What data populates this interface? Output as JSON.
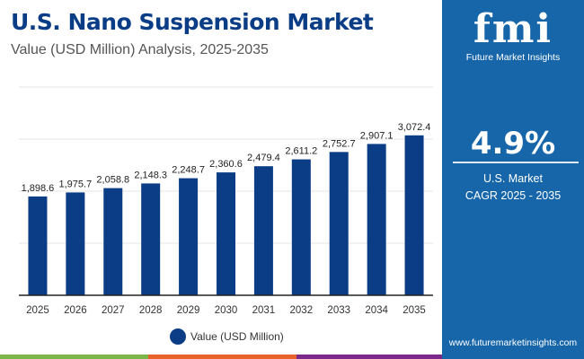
{
  "header": {
    "title": "U.S. Nano Suspension Market",
    "subtitle": "Value (USD Million) Analysis, 2025-2035"
  },
  "sidebar": {
    "logo_text": "fmi",
    "logo_caption": "Future Market Insights",
    "cagr_value": "4.9%",
    "market_label": "U.S. Market",
    "cagr_label": "CAGR 2025 - 2035",
    "website": "www.futuremarketinsights.com",
    "background": "#1766a9"
  },
  "chart_data": {
    "type": "bar",
    "categories": [
      "2025",
      "2026",
      "2027",
      "2028",
      "2029",
      "2030",
      "2031",
      "2032",
      "2033",
      "2034",
      "2035"
    ],
    "series": [
      {
        "name": "Value (USD Million)",
        "values": [
          1898.6,
          1975.7,
          2058.8,
          2148.3,
          2248.7,
          2360.6,
          2479.4,
          2611.2,
          2752.7,
          2907.1,
          3072.4
        ],
        "labels": [
          "1,898.6",
          "1,975.7",
          "2,058.8",
          "2,148.3",
          "2,248.7",
          "2,360.6",
          "2,479.4",
          "2,611.2",
          "2,752.7",
          "2,907.1",
          "3,072.4"
        ],
        "color": "#0b3d86"
      }
    ],
    "ylim": [
      0,
      4000
    ],
    "grid": true,
    "legend": "bottom",
    "xlabel": "",
    "ylabel": ""
  }
}
